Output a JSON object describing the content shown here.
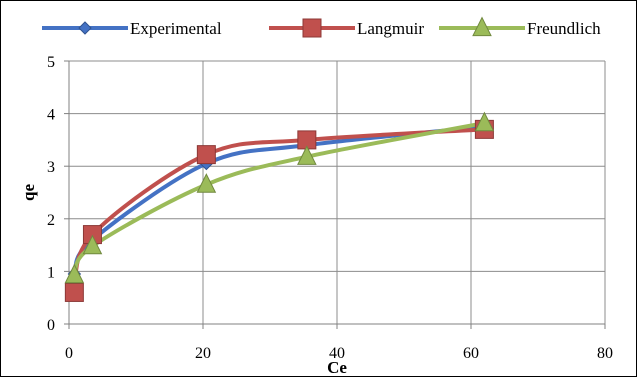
{
  "chart_data": {
    "type": "scatter",
    "title": "",
    "xlabel": "Ce",
    "ylabel": "qe",
    "xlim": [
      0,
      80
    ],
    "ylim": [
      0,
      5
    ],
    "xticks": [
      "0",
      "20",
      "40",
      "60",
      "80"
    ],
    "yticks": [
      "0",
      "1",
      "2",
      "3",
      "4",
      "5"
    ],
    "grid": true,
    "legend_position": "top",
    "smooth_lines": true,
    "series": [
      {
        "name": "Experimental",
        "color": "#4472C4",
        "marker": "diamond",
        "x": [
          0.8,
          3.5,
          20.5,
          35.5,
          62
        ],
        "y": [
          0.95,
          1.6,
          3.05,
          3.4,
          3.75
        ]
      },
      {
        "name": "Langmuir",
        "color": "#C0504D",
        "marker": "square",
        "x": [
          0.8,
          3.5,
          20.5,
          35.5,
          62
        ],
        "y": [
          0.6,
          1.7,
          3.22,
          3.5,
          3.7
        ]
      },
      {
        "name": "Freundlich",
        "color": "#9BBB59",
        "marker": "triangle",
        "x": [
          0.8,
          3.5,
          20.5,
          35.5,
          62
        ],
        "y": [
          0.93,
          1.48,
          2.65,
          3.18,
          3.82
        ]
      }
    ]
  }
}
